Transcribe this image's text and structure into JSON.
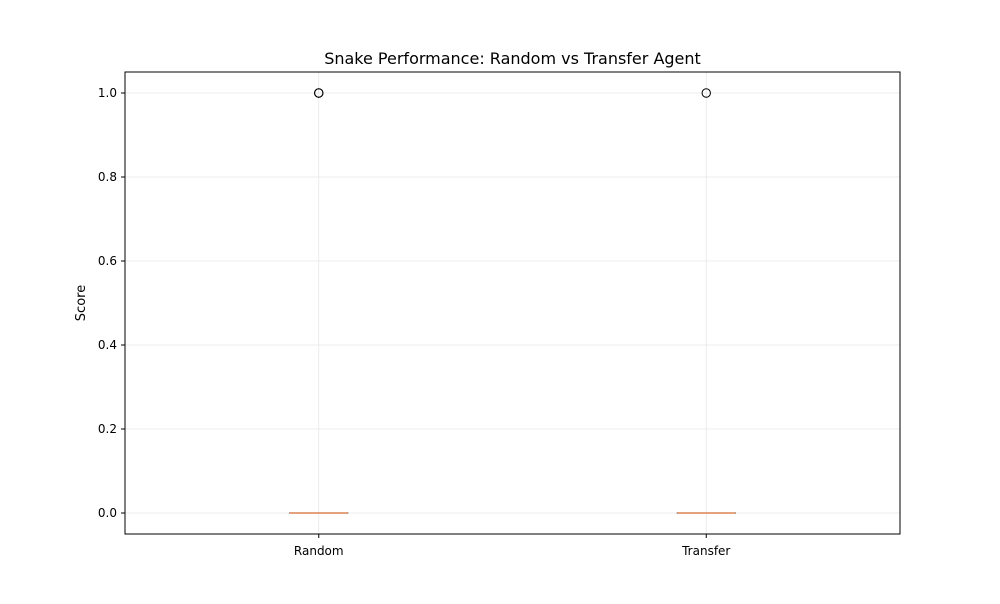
{
  "chart_data": {
    "type": "box",
    "title": "Snake Performance: Random vs Transfer Agent",
    "xlabel": "",
    "ylabel": "Score",
    "categories": [
      "Random",
      "Transfer"
    ],
    "boxes": [
      {
        "category": "Random",
        "min": 0.0,
        "q1": 0.0,
        "median": 0.0,
        "q3": 0.0,
        "max": 0.0,
        "outliers": [
          1.0,
          1.0
        ]
      },
      {
        "category": "Transfer",
        "min": 0.0,
        "q1": 0.0,
        "median": 0.0,
        "q3": 0.0,
        "max": 0.0,
        "outliers": [
          1.0
        ]
      }
    ],
    "ylim": [
      -0.05,
      1.05
    ],
    "yticks": [
      "0.0",
      "0.2",
      "0.4",
      "0.6",
      "0.8",
      "1.0"
    ],
    "grid": true,
    "colors": {
      "median": "#dd8452",
      "box": "#000000",
      "grid": "#e6e6e6",
      "outlier": "#000000"
    }
  }
}
